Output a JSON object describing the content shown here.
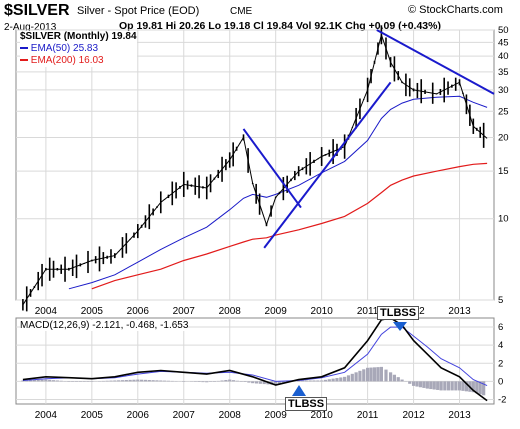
{
  "header": {
    "symbol": "$SILVER",
    "name": "Silver - Spot Price (EOD)",
    "exchange": "CME",
    "copyright": "© StockCharts.com",
    "date": "2-Aug-2013",
    "ohlc": "Op 19.81 Hi 20.26 Lo 19.18 Cl 19.84 Vol 92.1K Chg +0.09 (+0.43%)",
    "ohlc_dir": "up"
  },
  "price_legend": {
    "line1": "$SILVER (Monthly) 19.84",
    "line2": "EMA(50) 25.83",
    "line3": "EMA(200) 16.03"
  },
  "macd_legend": {
    "text": "MACD(12,26,9) -2.121, -0.468, -1.653"
  },
  "annotations": {
    "tlbss_top": "TLBSS",
    "tlbss_bottom": "TLBSS"
  },
  "colors": {
    "price": "#000000",
    "ema50": "#1b1bc8",
    "ema200": "#e21b1b",
    "trendline": "#1a1acc",
    "macd_line": "#000000",
    "signal_line": "#4444dd",
    "histogram": "#a8a8b8",
    "grid": "#d9d9d9"
  },
  "chart_data": [
    {
      "type": "line",
      "title": "$SILVER Monthly",
      "x": [
        2003.5,
        2004,
        2004.5,
        2005,
        2005.5,
        2006,
        2006.5,
        2007,
        2007.5,
        2008,
        2008.3,
        2008.5,
        2008.8,
        2009,
        2009.5,
        2010,
        2010.5,
        2011,
        2011.3,
        2011.5,
        2011.75,
        2012,
        2012.5,
        2013,
        2013.3,
        2013.6
      ],
      "ylim": [
        5,
        50
      ],
      "yticks": [
        5,
        10,
        15,
        20,
        25,
        30,
        35,
        40,
        45,
        50
      ],
      "xticks": [
        "2004",
        "2005",
        "2006",
        "2007",
        "2008",
        "2009",
        "2010",
        "2011",
        "2012",
        "2013"
      ],
      "y_scale": "log",
      "grid": true,
      "series": [
        {
          "name": "$SILVER",
          "values": [
            4.8,
            6.5,
            6.5,
            7.0,
            7.3,
            9.0,
            11.5,
            13.4,
            13.0,
            16.5,
            20.0,
            13.5,
            9.5,
            12.0,
            15.0,
            17.0,
            18.5,
            30.0,
            48.0,
            38.0,
            32.0,
            30.0,
            29.0,
            32.0,
            22.0,
            19.84
          ]
        },
        {
          "name": "EMA(50)",
          "values": [
            null,
            null,
            5.5,
            5.8,
            6.2,
            6.9,
            7.7,
            8.5,
            9.3,
            10.8,
            11.9,
            12.3,
            12.0,
            12.3,
            13.3,
            14.8,
            16.3,
            19.5,
            23.5,
            25.4,
            26.8,
            27.7,
            28.2,
            28.4,
            27.0,
            25.83
          ]
        },
        {
          "name": "EMA(200)",
          "values": [
            null,
            null,
            null,
            5.5,
            5.9,
            6.2,
            6.5,
            7.0,
            7.4,
            7.9,
            8.2,
            8.4,
            8.5,
            8.7,
            9.1,
            9.6,
            10.2,
            11.4,
            12.5,
            13.3,
            13.9,
            14.4,
            15.0,
            15.6,
            15.9,
            16.03
          ]
        }
      ]
    },
    {
      "type": "line",
      "title": "MACD(12,26,9)",
      "x": [
        2003.5,
        2004,
        2004.5,
        2005,
        2005.5,
        2006,
        2006.5,
        2007,
        2007.5,
        2008,
        2008.5,
        2009,
        2009.5,
        2010,
        2010.5,
        2011,
        2011.3,
        2011.5,
        2011.75,
        2012,
        2012.3,
        2012.6,
        2013,
        2013.3,
        2013.6
      ],
      "ylim": [
        -2.5,
        7
      ],
      "yticks": [
        -2,
        0,
        2,
        4,
        6
      ],
      "xticks": [
        "2004",
        "2005",
        "2006",
        "2007",
        "2008",
        "2009",
        "2010",
        "2011",
        "2012",
        "2013"
      ],
      "series": [
        {
          "name": "MACD",
          "values": [
            0.2,
            0.5,
            0.4,
            0.3,
            0.5,
            1.0,
            1.2,
            1.0,
            0.8,
            1.2,
            0.5,
            -0.4,
            0.2,
            0.5,
            1.5,
            4.5,
            6.8,
            7.0,
            6.2,
            4.5,
            3.0,
            1.5,
            0.5,
            -1.0,
            -2.121
          ]
        },
        {
          "name": "Signal",
          "values": [
            0.1,
            0.3,
            0.4,
            0.3,
            0.4,
            0.8,
            1.1,
            1.0,
            0.9,
            1.0,
            0.7,
            0.0,
            0.1,
            0.4,
            1.0,
            3.0,
            5.2,
            6.0,
            6.0,
            5.0,
            3.8,
            2.5,
            1.5,
            0.2,
            -0.468
          ]
        },
        {
          "name": "Histogram",
          "values": [
            0.1,
            0.2,
            0.0,
            0.0,
            0.1,
            0.2,
            0.1,
            0.0,
            -0.1,
            0.2,
            -0.2,
            -0.4,
            0.1,
            0.1,
            0.5,
            1.5,
            1.6,
            1.0,
            0.2,
            -0.5,
            -0.8,
            -1.0,
            -1.0,
            -1.2,
            -1.653
          ]
        }
      ]
    }
  ]
}
